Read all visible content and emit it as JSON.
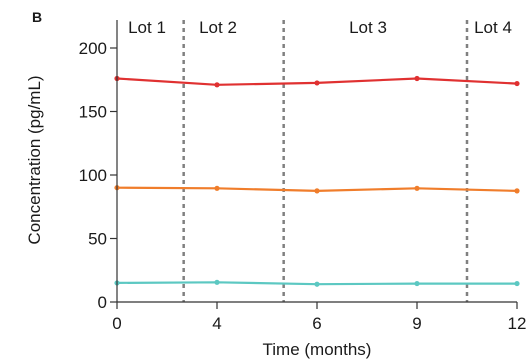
{
  "chart_data": {
    "type": "line",
    "panel_label": "B",
    "xlabel": "Time (months)",
    "ylabel": "Concentration (pg/mL)",
    "categories": [
      "0",
      "4",
      "6",
      "9",
      "12"
    ],
    "y_ticks": [
      "0",
      "50",
      "100",
      "150",
      "200"
    ],
    "ylim": [
      0,
      200
    ],
    "grid": false,
    "series": [
      {
        "values": [
          176,
          171,
          172.5,
          176,
          172
        ],
        "color": "#e03131"
      },
      {
        "values": [
          90,
          89.5,
          87.5,
          89.5,
          87.5
        ],
        "color": "#f07d2b"
      },
      {
        "values": [
          15,
          15.5,
          14,
          14.5,
          14.5
        ],
        "color": "#5cc8c2"
      }
    ],
    "lot_labels": [
      "Lot 1",
      "Lot 2",
      "Lot 3",
      "Lot 4"
    ],
    "lot_boundaries_x_index": [
      2,
      5,
      10.5
    ],
    "divider_color": "#808080",
    "axis_color": "#333333"
  }
}
